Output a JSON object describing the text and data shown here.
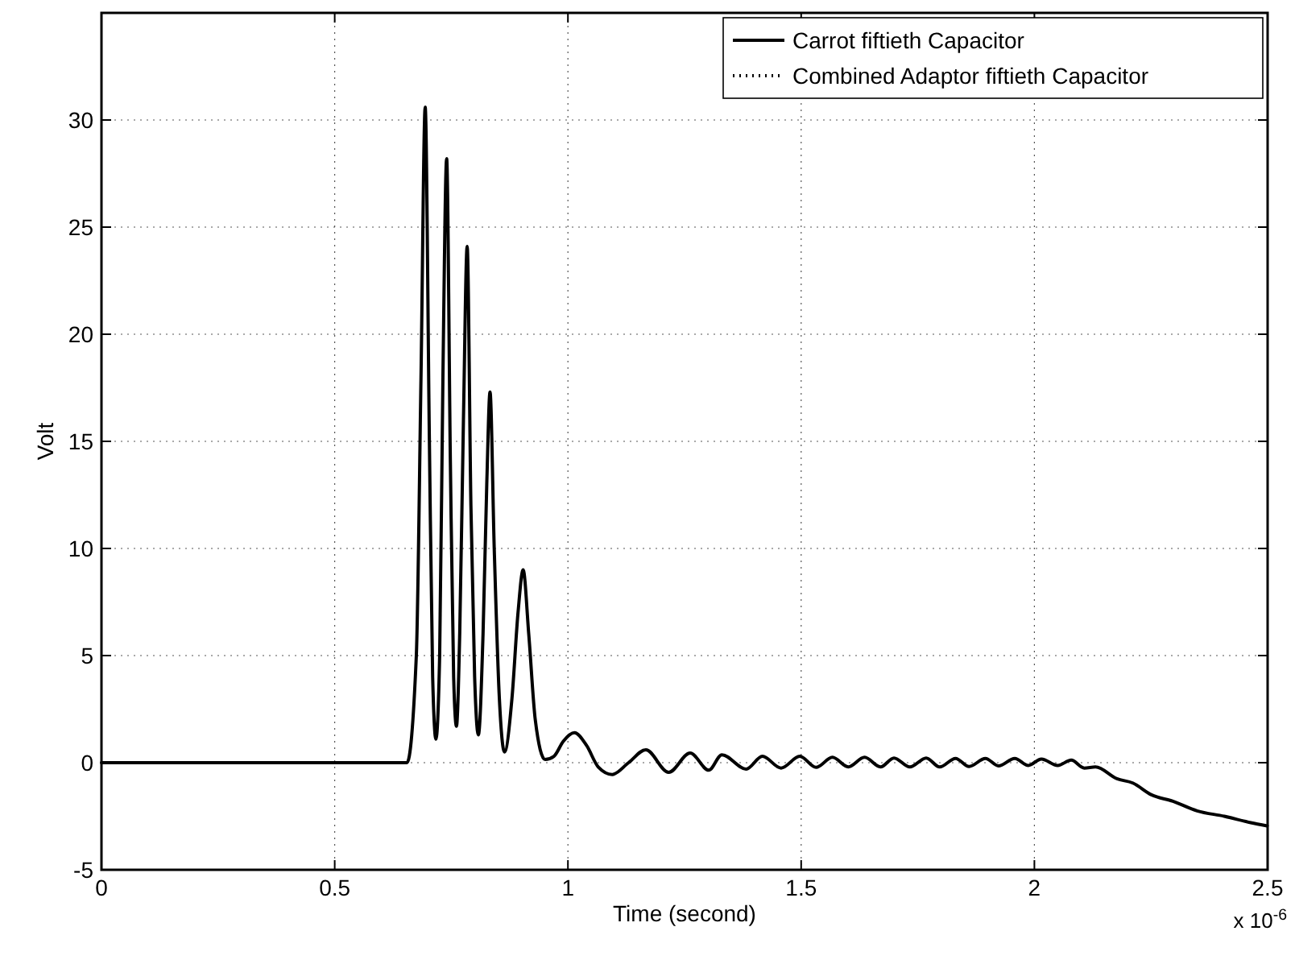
{
  "chart_data": {
    "type": "line",
    "xlabel": "Time (second)",
    "ylabel": "Volt",
    "x": [
      0,
      0.655,
      0.675,
      0.685,
      0.694,
      0.703,
      0.71,
      0.717,
      0.725,
      0.732,
      0.74,
      0.748,
      0.755,
      0.761,
      0.768,
      0.776,
      0.784,
      0.792,
      0.8,
      0.808,
      0.818,
      0.826,
      0.833,
      0.842,
      0.853,
      0.864,
      0.88,
      0.893,
      0.904,
      0.916,
      0.93,
      0.951,
      0.97,
      0.99,
      1.014,
      1.04,
      1.065,
      1.095,
      1.13,
      1.167,
      1.216,
      1.262,
      1.302,
      1.33,
      1.382,
      1.417,
      1.457,
      1.497,
      1.532,
      1.567,
      1.601,
      1.636,
      1.67,
      1.699,
      1.733,
      1.768,
      1.797,
      1.831,
      1.86,
      1.895,
      1.923,
      1.958,
      1.987,
      2.015,
      2.05,
      2.079,
      2.107,
      2.131,
      2.177,
      2.211,
      2.251,
      2.297,
      2.349,
      2.407,
      2.464,
      2.499
    ],
    "series": [
      {
        "name": "Carrot fiftieth Capacitor",
        "color": "#000000",
        "line_style": "solid",
        "values": [
          0,
          0,
          5,
          18,
          30.6,
          15,
          4,
          1.1,
          5,
          18,
          28.2,
          14,
          4,
          1.7,
          6,
          16,
          24.1,
          12,
          4,
          1.3,
          6,
          13,
          17.3,
          10,
          3,
          0.5,
          3,
          7,
          9.0,
          6,
          2,
          0.15,
          0.3,
          1.0,
          1.4,
          0.8,
          -0.2,
          -0.55,
          0,
          0.6,
          -0.45,
          0.45,
          -0.35,
          0.37,
          -0.3,
          0.3,
          -0.25,
          0.3,
          -0.22,
          0.25,
          -0.2,
          0.25,
          -0.2,
          0.22,
          -0.2,
          0.22,
          -0.2,
          0.2,
          -0.18,
          0.2,
          -0.15,
          0.2,
          -0.13,
          0.17,
          -0.13,
          0.12,
          -0.25,
          -0.2,
          -0.75,
          -0.95,
          -1.5,
          -1.8,
          -2.25,
          -2.5,
          -2.8,
          -2.95
        ]
      },
      {
        "name": "Combined Adaptor fiftieth Capacitor",
        "color": "#000000",
        "line_style": "dotted",
        "values": [
          null,
          null,
          null,
          null,
          null,
          null,
          null,
          null,
          null,
          null,
          null,
          null,
          null,
          null,
          null,
          null,
          null,
          null,
          null,
          null,
          null,
          null,
          null,
          null,
          null,
          null,
          null,
          null,
          null,
          null,
          null,
          null,
          null,
          null,
          null,
          null,
          null,
          null,
          null,
          null,
          null,
          null,
          null,
          null,
          null,
          null,
          null,
          null,
          null,
          null,
          null,
          null,
          null,
          null,
          null,
          null,
          null,
          null,
          null,
          null,
          null,
          null,
          null,
          null,
          null,
          null,
          null,
          null,
          null,
          null,
          null,
          null,
          null,
          null,
          null,
          null
        ]
      }
    ],
    "xlim": [
      0,
      2.5
    ],
    "xticks": [
      0,
      0.5,
      1,
      1.5,
      2,
      2.5
    ],
    "ylim": [
      -5,
      35
    ],
    "yticks": [
      -5,
      0,
      5,
      10,
      15,
      20,
      25,
      30
    ],
    "grid": true,
    "legend": "top right",
    "annotations": [
      "x 10$^{-6}$"
    ]
  }
}
